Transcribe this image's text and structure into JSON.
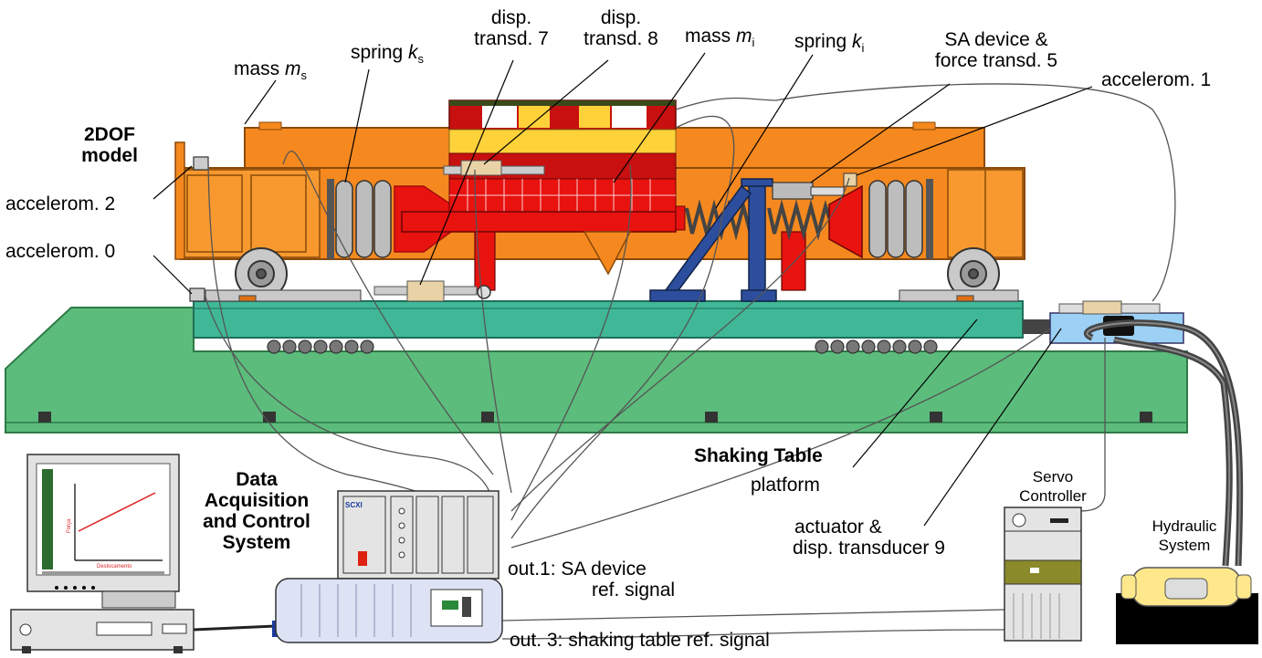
{
  "labels": {
    "mass_s": {
      "text": "mass ",
      "sym": "m",
      "sub": "s"
    },
    "spring_s": {
      "text": "spring ",
      "sym": "k",
      "sub": "s"
    },
    "disp7": {
      "line1": "disp.",
      "line2": "transd. 7"
    },
    "disp8": {
      "line1": "disp.",
      "line2": "transd. 8"
    },
    "mass_i": {
      "text": "mass ",
      "sym": "m",
      "sub": "i"
    },
    "spring_i": {
      "text": "spring ",
      "sym": "k",
      "sub": "i"
    },
    "sa_device": {
      "line1": "SA device  &",
      "line2": "force transd. 5"
    },
    "accel1": "accelerom. 1",
    "model_title": {
      "line1": "2DOF",
      "line2": "model"
    },
    "accel2": "accelerom. 2",
    "accel0": "accelerom. 0",
    "shaking_table": "Shaking Table",
    "platform": "platform",
    "servo": {
      "line1": "Servo",
      "line2": "Controller"
    },
    "hydraulic": {
      "line1": "Hydraulic",
      "line2": "System"
    },
    "actuator": {
      "line1": "actuator &",
      "line2": "disp. transducer 9"
    },
    "daq": {
      "line1": "Data",
      "line2": "Acquisition",
      "line3": "and Control",
      "line4": "System"
    },
    "out1": {
      "line1": "out.1: SA device",
      "line2": "ref. signal"
    },
    "out3": "out. 3: shaking table ref. signal",
    "monitor_ylabel": "Força",
    "monitor_xlabel": "Deslocamento",
    "scxi_brand": "SCXI"
  },
  "colors": {
    "orange": "#f5891f",
    "orange_dark": "#c8620a",
    "red": "#e8120f",
    "red_dark": "#a60d0a",
    "yellow": "#ffd23a",
    "green_base": "#5cbc7c",
    "teal_platform": "#40b898",
    "blue_frame": "#2c4e9c",
    "actuator_blue": "#9cd0f4",
    "spring_gray": "#bdbdbd"
  }
}
